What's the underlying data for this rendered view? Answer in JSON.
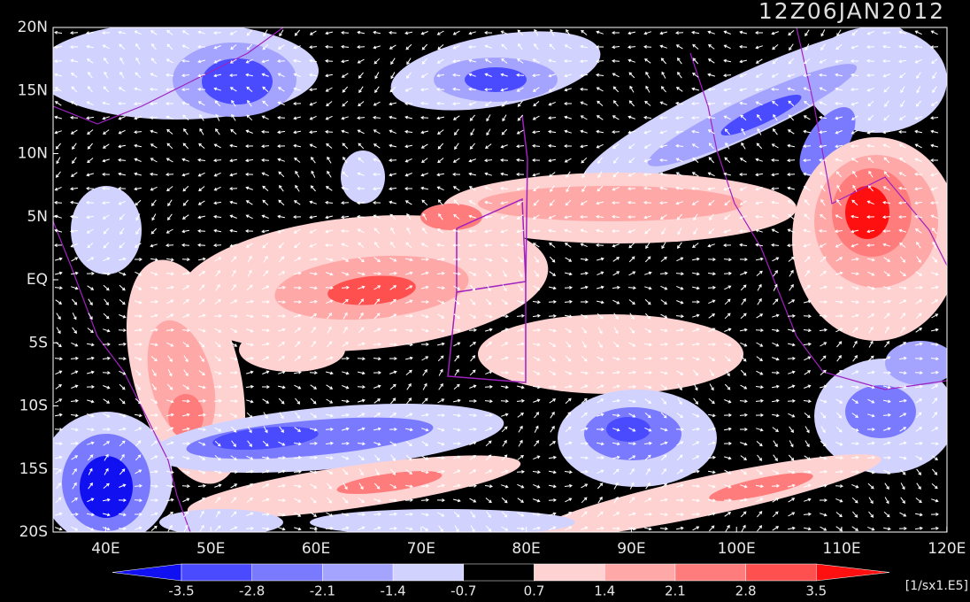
{
  "title": "12Z06JAN2012",
  "map": {
    "lat_labels": [
      "20N",
      "15N",
      "10N",
      "5N",
      "EQ",
      "5S",
      "10S",
      "15S",
      "20S"
    ],
    "lon_labels": [
      "40E",
      "50E",
      "60E",
      "70E",
      "80E",
      "90E",
      "100E",
      "110E",
      "120E"
    ]
  },
  "legend": {
    "labels": [
      "-3.5",
      "-2.8",
      "-2.1",
      "-1.4",
      "-0.7",
      "0.7",
      "1.4",
      "2.1",
      "2.8",
      "3.5"
    ],
    "colors": [
      "#1010f0",
      "#4a4aff",
      "#7a7aff",
      "#a4a4ff",
      "#d2d2ff",
      "#000000",
      "#ffd2d2",
      "#ffa8a8",
      "#ff7c7c",
      "#ff5050",
      "#ff1010"
    ],
    "units": "[1/sx1.E5]"
  }
}
